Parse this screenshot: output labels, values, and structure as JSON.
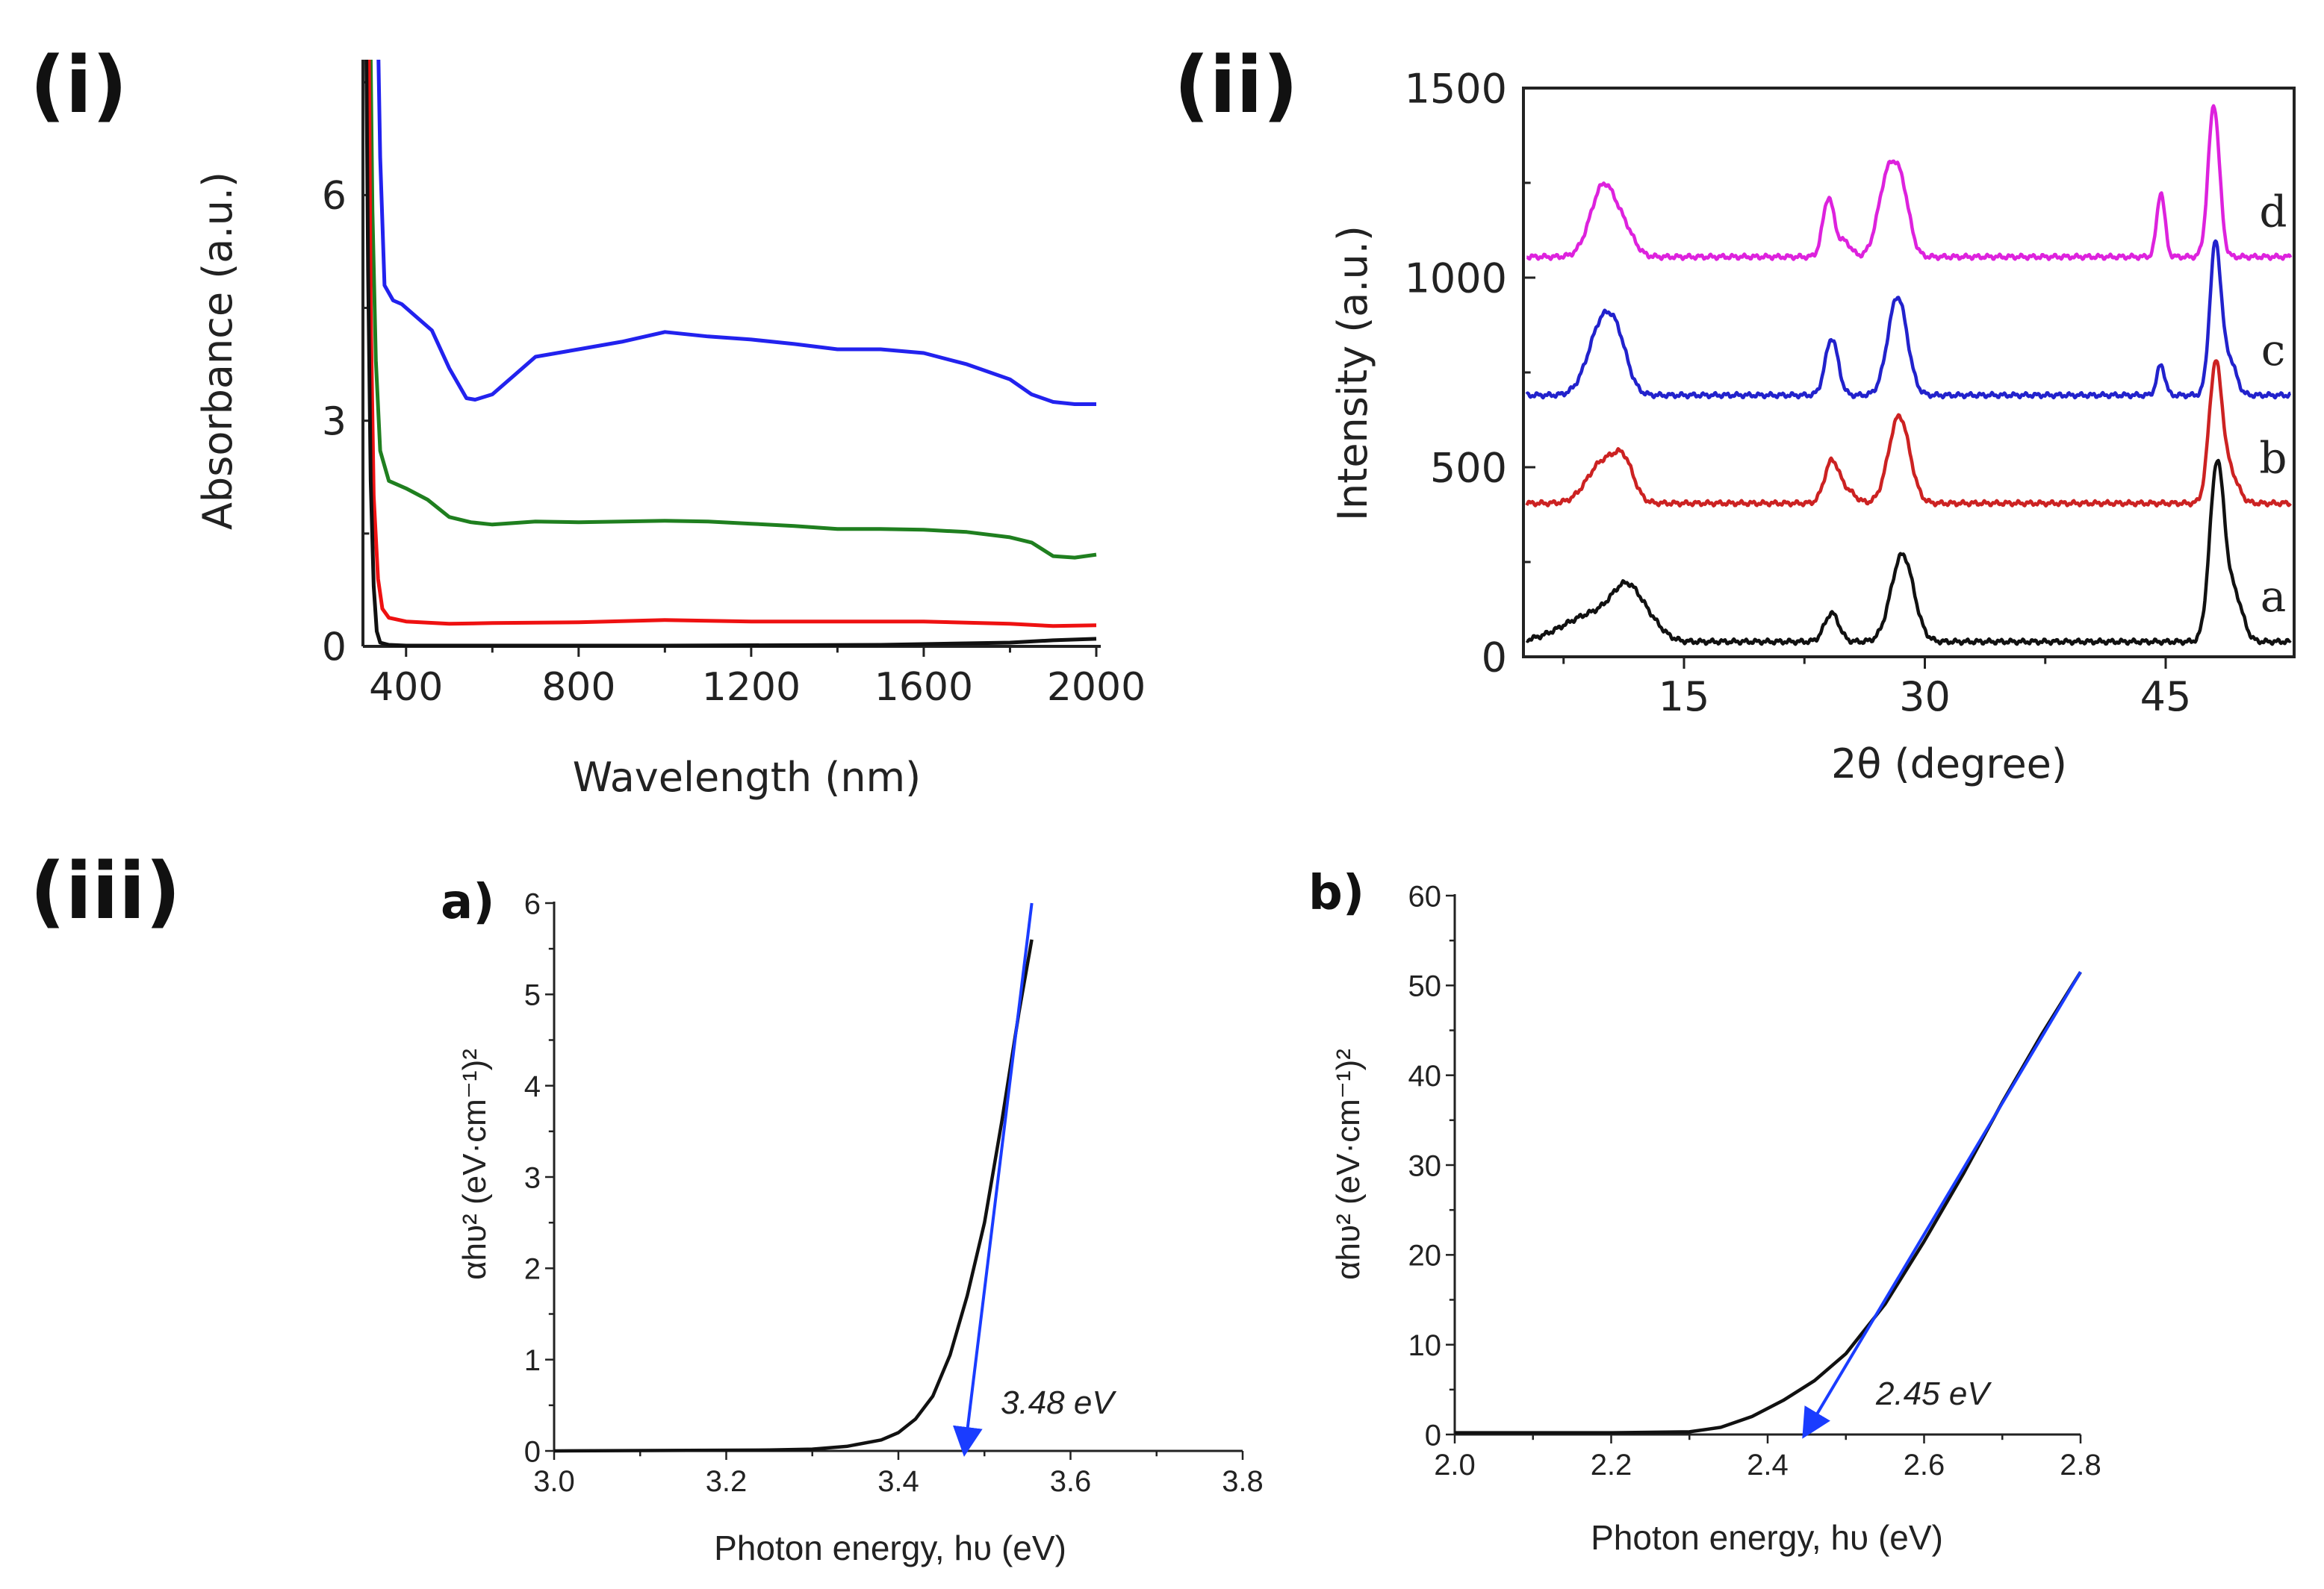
{
  "panels": {
    "i": "(i)",
    "ii": "(ii)",
    "iii": "(iii)"
  },
  "chart_data": [
    {
      "id": "panel-i",
      "type": "line",
      "title": "",
      "xlabel": "Wavelength (nm)",
      "ylabel": "Absorbance (a.u.)",
      "xlim": [
        300,
        2000
      ],
      "ylim": [
        0,
        7.8
      ],
      "xticks": [
        400,
        800,
        1200,
        1600,
        2000
      ],
      "yticks": [
        0,
        3,
        6
      ],
      "series": [
        {
          "name": "blue",
          "color": "#2222ee",
          "x": [
            336,
            340,
            350,
            370,
            390,
            420,
            460,
            500,
            540,
            560,
            600,
            650,
            700,
            800,
            900,
            1000,
            1100,
            1200,
            1300,
            1400,
            1500,
            1600,
            1700,
            1800,
            1850,
            1900,
            1950,
            2000
          ],
          "y": [
            7.8,
            6.5,
            4.8,
            4.6,
            4.55,
            4.4,
            4.2,
            3.7,
            3.3,
            3.28,
            3.35,
            3.6,
            3.85,
            3.95,
            4.05,
            4.18,
            4.12,
            4.08,
            4.02,
            3.95,
            3.95,
            3.9,
            3.75,
            3.55,
            3.35,
            3.25,
            3.22,
            3.22
          ]
        },
        {
          "name": "green",
          "color": "#1f7f1f",
          "x": [
            318,
            322,
            330,
            340,
            360,
            400,
            450,
            500,
            550,
            600,
            700,
            800,
            900,
            1000,
            1100,
            1200,
            1300,
            1400,
            1500,
            1600,
            1700,
            1800,
            1850,
            1900,
            1950,
            2000
          ],
          "y": [
            7.8,
            5.8,
            3.8,
            2.6,
            2.2,
            2.1,
            1.95,
            1.72,
            1.65,
            1.62,
            1.66,
            1.65,
            1.66,
            1.67,
            1.66,
            1.63,
            1.6,
            1.56,
            1.56,
            1.55,
            1.52,
            1.45,
            1.38,
            1.2,
            1.18,
            1.22
          ]
        },
        {
          "name": "red",
          "color": "#ee1111",
          "x": [
            314,
            318,
            325,
            335,
            345,
            360,
            400,
            500,
            600,
            800,
            1000,
            1200,
            1400,
            1600,
            1800,
            1900,
            2000
          ],
          "y": [
            7.8,
            4.5,
            2.0,
            0.9,
            0.5,
            0.38,
            0.33,
            0.3,
            0.31,
            0.32,
            0.35,
            0.33,
            0.33,
            0.33,
            0.3,
            0.27,
            0.28
          ]
        },
        {
          "name": "black",
          "color": "#111111",
          "x": [
            308,
            312,
            318,
            325,
            332,
            340,
            360,
            400,
            600,
            1000,
            1500,
            1800,
            1900,
            2000
          ],
          "y": [
            7.8,
            5.0,
            2.2,
            0.8,
            0.2,
            0.05,
            0.02,
            0.01,
            0.01,
            0.01,
            0.02,
            0.05,
            0.08,
            0.1
          ]
        }
      ]
    },
    {
      "id": "panel-ii",
      "type": "line",
      "title": "",
      "xlabel": "2θ (degree)",
      "ylabel": "Intensity (a.u.)",
      "xlim": [
        5,
        53
      ],
      "ylim": [
        0,
        1500
      ],
      "xticks": [
        15,
        30,
        45
      ],
      "yticks": [
        0,
        500,
        1000,
        1500
      ],
      "series": [
        {
          "name": "a",
          "color": "#111111",
          "baseline": 40,
          "peaks": [
            [
              8.0,
              30,
              1.5
            ],
            [
              10.0,
              60,
              1.5
            ],
            [
              11.5,
              110,
              0.9
            ],
            [
              13.0,
              35,
              0.8
            ],
            [
              24.2,
              75,
              0.45
            ],
            [
              28.6,
              230,
              0.7
            ],
            [
              48.2,
              470,
              0.45
            ],
            [
              49.3,
              120,
              0.5
            ]
          ]
        },
        {
          "name": "b",
          "color": "#cc2222",
          "baseline": 405,
          "peaks": [
            [
              10.0,
              110,
              1.0
            ],
            [
              11.3,
              80,
              0.6
            ],
            [
              24.2,
              110,
              0.45
            ],
            [
              25.2,
              30,
              0.5
            ],
            [
              28.4,
              230,
              0.65
            ],
            [
              48.1,
              360,
              0.4
            ],
            [
              49.0,
              80,
              0.5
            ]
          ]
        },
        {
          "name": "c",
          "color": "#2222cc",
          "baseline": 690,
          "peaks": [
            [
              10.0,
              200,
              0.9
            ],
            [
              11.0,
              60,
              0.6
            ],
            [
              24.2,
              150,
              0.4
            ],
            [
              28.3,
              260,
              0.6
            ],
            [
              44.7,
              80,
              0.25
            ],
            [
              48.1,
              400,
              0.35
            ],
            [
              49.0,
              90,
              0.4
            ]
          ]
        },
        {
          "name": "d",
          "color": "#dd22dd",
          "baseline": 1055,
          "peaks": [
            [
              10.0,
              190,
              0.8
            ],
            [
              11.4,
              50,
              0.6
            ],
            [
              24.0,
              155,
              0.35
            ],
            [
              25.0,
              40,
              0.4
            ],
            [
              27.7,
              210,
              0.6
            ],
            [
              28.6,
              140,
              0.5
            ],
            [
              44.7,
              170,
              0.25
            ],
            [
              48.0,
              400,
              0.35
            ]
          ]
        }
      ],
      "curve_labels": [
        "a",
        "b",
        "c",
        "d"
      ]
    },
    {
      "id": "panel-iii-a",
      "type": "line",
      "title": "a)",
      "xlabel": "Photon energy, hυ (eV)",
      "ylabel": "αhυ² (eV·cm⁻¹)²",
      "xlim": [
        3.0,
        3.8
      ],
      "ylim": [
        0,
        6
      ],
      "xticks": [
        3.0,
        3.2,
        3.4,
        3.6,
        3.8
      ],
      "yticks": [
        0,
        1,
        2,
        3,
        4,
        5,
        6
      ],
      "series": [
        {
          "name": "curve",
          "color": "#111111",
          "x": [
            3.0,
            3.25,
            3.3,
            3.34,
            3.38,
            3.4,
            3.42,
            3.44,
            3.46,
            3.48,
            3.5,
            3.52,
            3.54,
            3.555
          ],
          "y": [
            0,
            0.01,
            0.02,
            0.05,
            0.12,
            0.2,
            0.35,
            0.6,
            1.05,
            1.7,
            2.5,
            3.6,
            4.8,
            5.6
          ]
        },
        {
          "name": "tangent",
          "color": "#1a3cff",
          "x": [
            3.555,
            3.478
          ],
          "y": [
            6.0,
            0.0
          ]
        }
      ],
      "annotation": "3.48 eV"
    },
    {
      "id": "panel-iii-b",
      "type": "line",
      "title": "b)",
      "xlabel": "Photon energy, hυ (eV)",
      "ylabel": "αhυ² (eV·cm⁻¹)²",
      "xlim": [
        2.0,
        2.8
      ],
      "ylim": [
        0,
        60
      ],
      "xticks": [
        2.0,
        2.2,
        2.4,
        2.6,
        2.8
      ],
      "yticks": [
        0,
        10,
        20,
        30,
        40,
        50,
        60
      ],
      "series": [
        {
          "name": "curve",
          "color": "#111111",
          "x": [
            2.0,
            2.2,
            2.3,
            2.34,
            2.38,
            2.42,
            2.46,
            2.5,
            2.55,
            2.6,
            2.65,
            2.7,
            2.75,
            2.8
          ],
          "y": [
            0.2,
            0.2,
            0.3,
            0.8,
            2.0,
            3.8,
            6.0,
            9.0,
            14.5,
            21.5,
            29,
            37,
            44.5,
            51.5
          ]
        },
        {
          "name": "tangent",
          "color": "#1a3cff",
          "x": [
            2.8,
            2.452
          ],
          "y": [
            51.5,
            0.0
          ]
        }
      ],
      "annotation": "2.45 eV"
    }
  ]
}
